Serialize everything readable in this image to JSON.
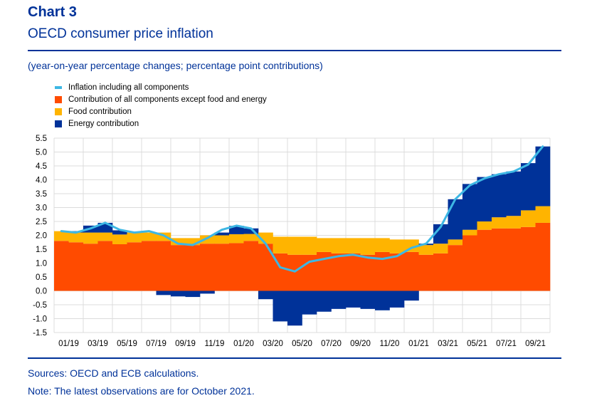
{
  "header": {
    "chart_number": "Chart 3",
    "title": "OECD consumer price inflation",
    "subtitle": "(year-on-year percentage changes; percentage point contributions)"
  },
  "footer": {
    "sources": "Sources: OECD and ECB calculations.",
    "note": "Note: The latest observations are for October 2021."
  },
  "colors": {
    "headline": "#3db7e4",
    "core": "#ff4b00",
    "food": "#ffb400",
    "energy": "#003299",
    "text_blue": "#003299",
    "grid": "#dcdcdc"
  },
  "chart_data": {
    "type": "bar",
    "stacked": true,
    "x": [
      "01/19",
      "02/19",
      "03/19",
      "04/19",
      "05/19",
      "06/19",
      "07/19",
      "08/19",
      "09/19",
      "10/19",
      "11/19",
      "12/19",
      "01/20",
      "02/20",
      "03/20",
      "04/20",
      "05/20",
      "06/20",
      "07/20",
      "08/20",
      "09/20",
      "10/20",
      "11/20",
      "12/20",
      "01/21",
      "02/21",
      "03/21",
      "04/21",
      "05/21",
      "06/21",
      "07/21",
      "08/21",
      "09/21",
      "10/21"
    ],
    "x_tick_labels": [
      "01/19",
      "03/19",
      "05/19",
      "07/19",
      "09/19",
      "11/19",
      "01/20",
      "03/20",
      "05/20",
      "07/20",
      "09/20",
      "11/20",
      "01/21",
      "03/21",
      "05/21",
      "07/21",
      "09/21"
    ],
    "ylim": [
      -1.5,
      5.5
    ],
    "y_ticks": [
      "5.5",
      "5.0",
      "4.5",
      "4.0",
      "3.5",
      "3.0",
      "2.5",
      "2.0",
      "1.5",
      "1.0",
      "0.5",
      "0.0",
      "-0.5",
      "-1.0",
      "-1.5"
    ],
    "grid": true,
    "legend_position": "top-left",
    "series": [
      {
        "name": "Contribution of all components except food and energy",
        "kind": "bar",
        "color_key": "core",
        "values": [
          1.8,
          1.75,
          1.7,
          1.8,
          1.68,
          1.75,
          1.8,
          1.8,
          1.65,
          1.65,
          1.7,
          1.7,
          1.72,
          1.8,
          1.7,
          1.35,
          1.3,
          1.3,
          1.4,
          1.35,
          1.35,
          1.3,
          1.4,
          1.35,
          1.4,
          1.3,
          1.35,
          1.65,
          2.0,
          2.2,
          2.25,
          2.25,
          2.3,
          2.45
        ]
      },
      {
        "name": "Food contribution",
        "kind": "bar",
        "color_key": "food",
        "values": [
          0.35,
          0.35,
          0.4,
          0.3,
          0.35,
          0.35,
          0.3,
          0.3,
          0.25,
          0.25,
          0.3,
          0.3,
          0.32,
          0.25,
          0.4,
          0.6,
          0.65,
          0.65,
          0.5,
          0.55,
          0.55,
          0.6,
          0.5,
          0.5,
          0.45,
          0.35,
          0.35,
          0.2,
          0.2,
          0.3,
          0.4,
          0.45,
          0.6,
          0.6
        ]
      },
      {
        "name": "Energy contribution",
        "kind": "bar",
        "color_key": "energy",
        "values": [
          0.0,
          0.05,
          0.25,
          0.35,
          0.15,
          0.0,
          0.0,
          -0.15,
          -0.2,
          -0.22,
          -0.1,
          0.1,
          0.3,
          0.2,
          -0.3,
          -1.1,
          -1.25,
          -0.85,
          -0.75,
          -0.65,
          -0.6,
          -0.65,
          -0.7,
          -0.6,
          -0.35,
          0.05,
          0.7,
          1.45,
          1.65,
          1.6,
          1.55,
          1.6,
          1.7,
          2.15
        ]
      },
      {
        "name": "Inflation including all components",
        "kind": "line",
        "color_key": "headline",
        "values": [
          2.15,
          2.1,
          2.25,
          2.45,
          2.2,
          2.1,
          2.15,
          2.0,
          1.7,
          1.65,
          1.9,
          2.2,
          2.35,
          2.25,
          1.7,
          0.85,
          0.7,
          1.05,
          1.15,
          1.25,
          1.3,
          1.2,
          1.15,
          1.25,
          1.55,
          1.7,
          2.3,
          3.3,
          3.8,
          4.05,
          4.2,
          4.3,
          4.55,
          5.2
        ]
      }
    ]
  }
}
